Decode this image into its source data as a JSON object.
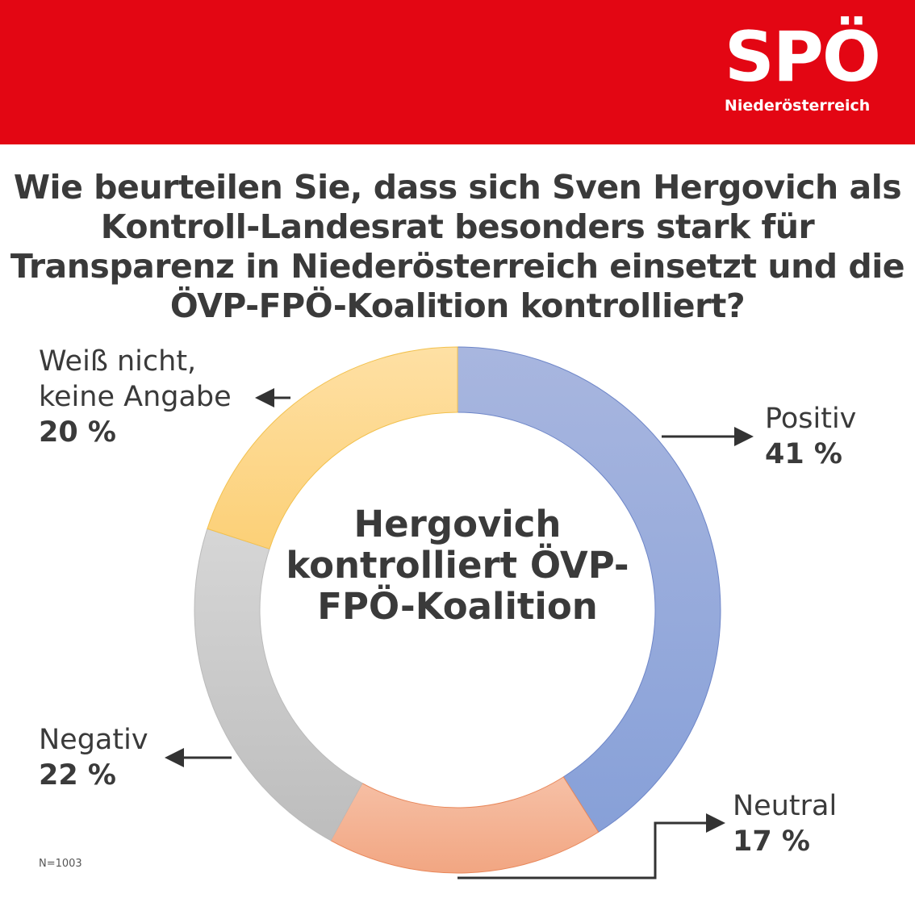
{
  "logo": {
    "main": "SPÖ",
    "sub": "Niederösterreich",
    "brand_color": "#E30613"
  },
  "question": "Wie beurteilen Sie, dass sich Sven Hergovich als Kontroll-Landesrat besonders stark für Transparenz in Niederösterreich einsetzt und die ÖVP-FPÖ-Koalition kontrolliert?",
  "chart_data": {
    "type": "pie",
    "variant": "donut",
    "center_title": "Hergovich kontrolliert ÖVP-FPÖ-Koalition",
    "slices": [
      {
        "label": "Positiv",
        "value": 41,
        "value_label": "41 %",
        "color": "#98A9DA"
      },
      {
        "label": "Neutral",
        "value": 17,
        "value_label": "17 %",
        "color": "#F4B196"
      },
      {
        "label": "Negativ",
        "value": 22,
        "value_label": "22 %",
        "color": "#C9C9C9"
      },
      {
        "label": "Weiß nicht, keine Angabe",
        "value": 20,
        "value_label": "20 %",
        "color": "#FDD98C"
      }
    ],
    "note": "N=1003"
  }
}
